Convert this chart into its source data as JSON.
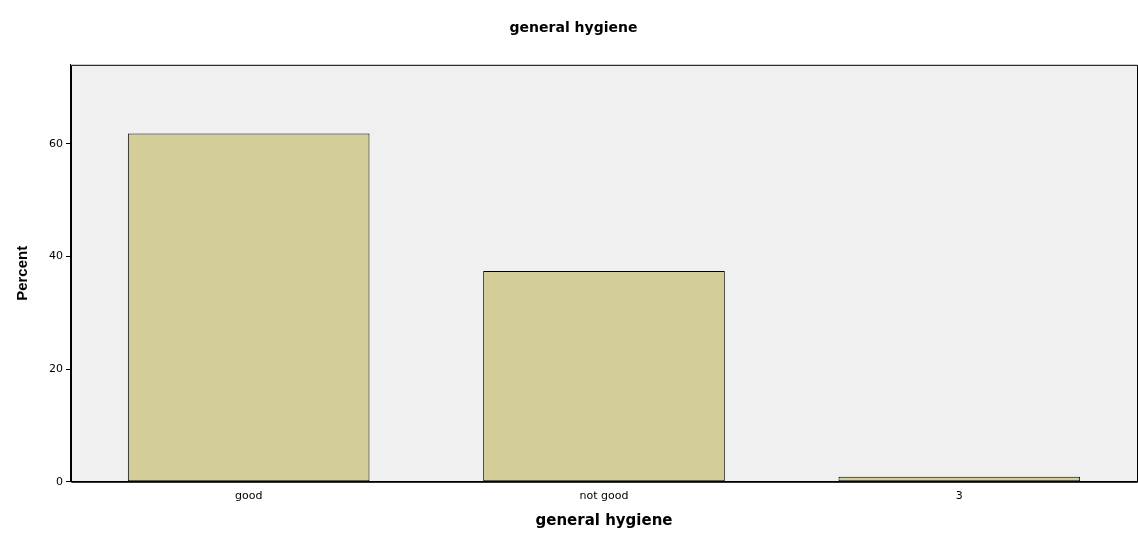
{
  "chart_data": {
    "type": "bar",
    "title": "general hygiene",
    "xlabel": "general hygiene",
    "ylabel": "Percent",
    "categories": [
      "good",
      "not good",
      "3"
    ],
    "values": [
      61.8,
      37.4,
      0.9
    ],
    "color": "#d3ce97",
    "ylim": [
      0,
      74
    ],
    "yticks": [
      0,
      20,
      40,
      60
    ],
    "grid": false,
    "legend": false
  }
}
